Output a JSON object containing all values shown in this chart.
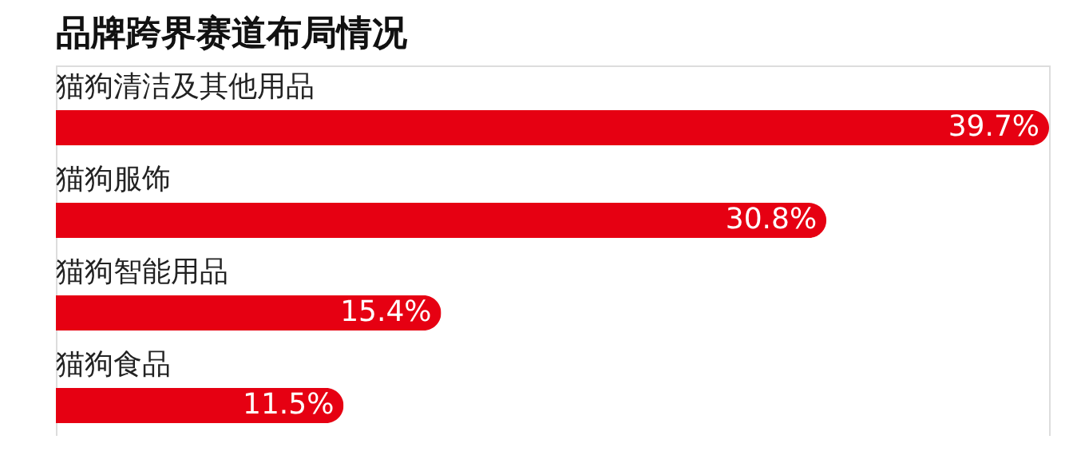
{
  "chart_data": {
    "type": "bar",
    "orientation": "horizontal",
    "title": "品牌跨界赛道布局情况",
    "categories": [
      "猫狗清洁及其他用品",
      "猫狗服饰",
      "猫狗智能用品",
      "猫狗食品"
    ],
    "values": [
      39.7,
      30.8,
      15.4,
      11.5
    ],
    "value_labels": [
      "39.7%",
      "30.8%",
      "15.4%",
      "11.5%"
    ],
    "color": "#e60012"
  }
}
